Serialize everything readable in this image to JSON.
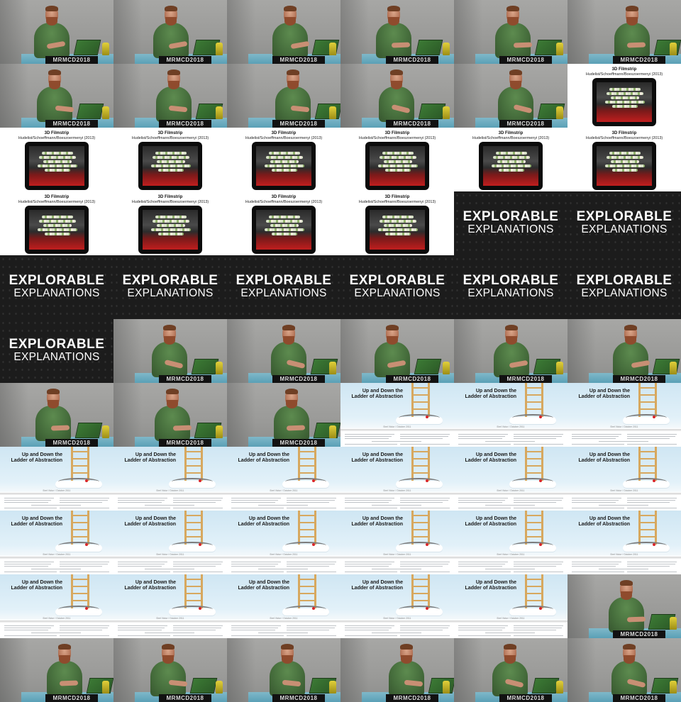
{
  "grid": {
    "columns": 6,
    "rows": 11
  },
  "speaker_banner_text": "MRMCD2018",
  "slides": {
    "filmstrip": {
      "title": "3D Filmstrip",
      "subtitle": "Hudelist/Schoeffmann/Boeszoermenyi (2013)"
    },
    "explorable": {
      "line1": "EXPLORABLE",
      "line2": "EXPLANATIONS"
    },
    "ladder": {
      "title_line1": "Up and Down the",
      "title_line2": "Ladder of Abstraction",
      "author": "Bret Victor / October 2011"
    }
  },
  "tiles": [
    "speaker",
    "speaker",
    "speaker",
    "speaker",
    "speaker",
    "speaker",
    "speaker",
    "speaker",
    "speaker",
    "speaker",
    "speaker",
    "filmstrip",
    "filmstrip",
    "filmstrip",
    "filmstrip",
    "filmstrip",
    "filmstrip",
    "filmstrip",
    "filmstrip",
    "filmstrip",
    "filmstrip",
    "filmstrip",
    "explorable",
    "explorable",
    "explorable",
    "explorable",
    "explorable",
    "explorable",
    "explorable",
    "explorable",
    "explorable",
    "speaker",
    "speaker",
    "speaker",
    "speaker",
    "speaker",
    "speaker",
    "speaker",
    "speaker",
    "ladder",
    "ladder",
    "ladder",
    "ladder",
    "ladder",
    "ladder",
    "ladder",
    "ladder",
    "ladder",
    "ladder",
    "ladder",
    "ladder",
    "ladder",
    "ladder",
    "ladder",
    "ladder",
    "ladder",
    "ladder",
    "ladder",
    "ladder",
    "speaker",
    "speaker",
    "speaker",
    "speaker",
    "speaker",
    "speaker",
    "speaker"
  ],
  "colors": {
    "shirt": "#476f3d",
    "desk": "#5aa0b6",
    "explorable_bg": "#1c1c1c",
    "ladder_sky": "#cfe6f3"
  }
}
